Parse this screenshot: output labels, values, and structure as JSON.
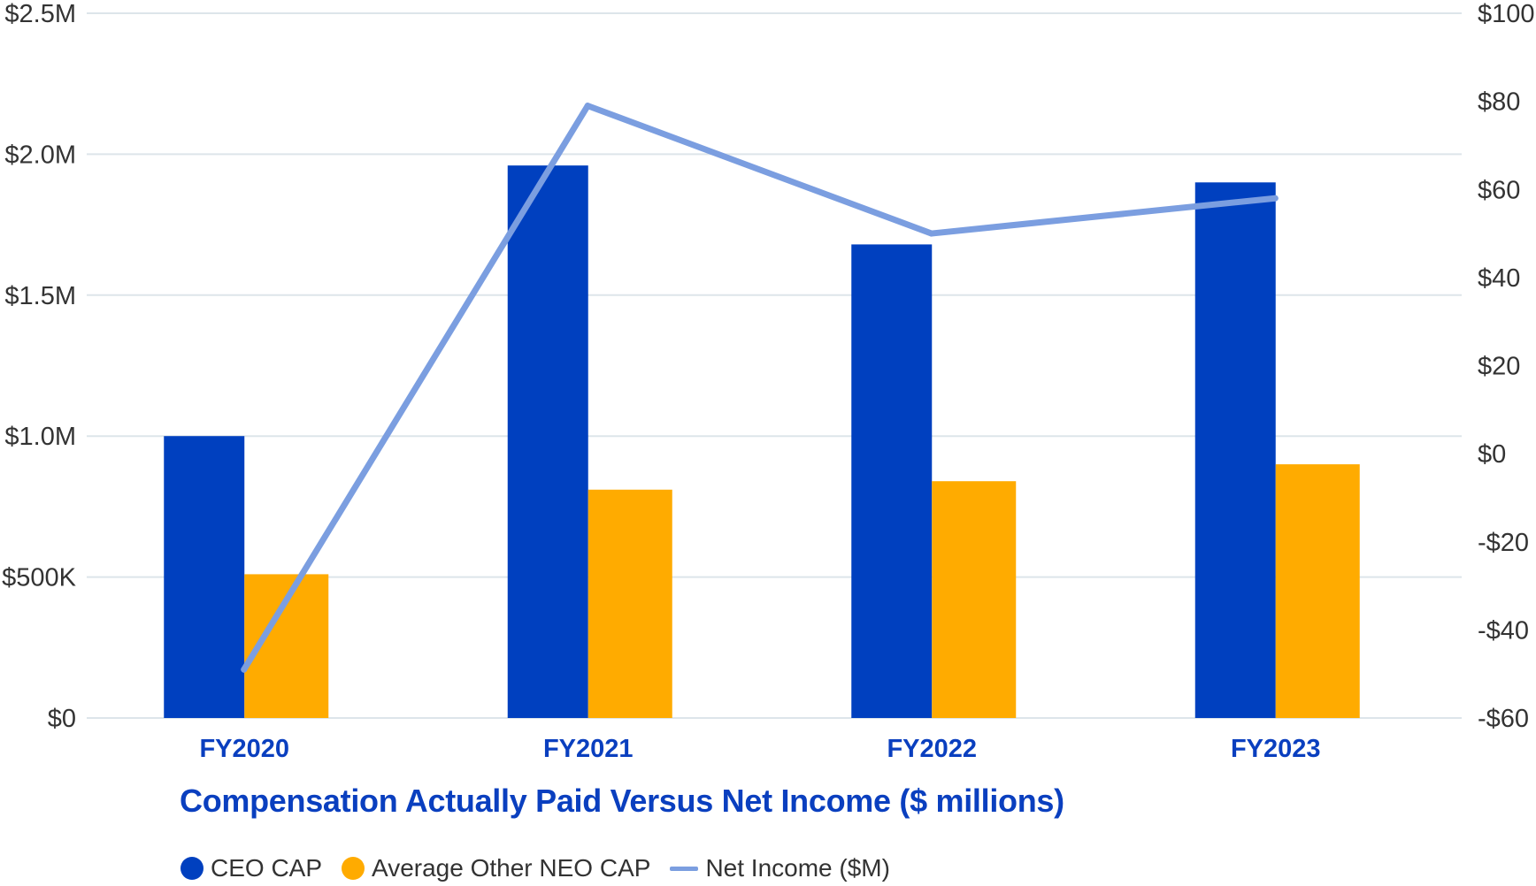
{
  "chart_data": {
    "type": "bar",
    "title": "Compensation Actually Paid Versus Net Income ($ millions)",
    "categories": [
      "FY2020",
      "FY2021",
      "FY2022",
      "FY2023"
    ],
    "series": [
      {
        "name": "CEO CAP",
        "type": "bar",
        "axis": "left",
        "color": "#0040bf",
        "values": [
          1000000,
          1960000,
          1680000,
          1900000
        ]
      },
      {
        "name": "Average Other NEO CAP",
        "type": "bar",
        "axis": "left",
        "color": "#ffab00",
        "values": [
          510000,
          810000,
          840000,
          900000
        ]
      },
      {
        "name": "Net Income ($M)",
        "type": "line",
        "axis": "right",
        "color": "#7b9ee0",
        "values": [
          -49,
          79,
          50,
          58
        ]
      }
    ],
    "y_left": {
      "ylim": [
        0,
        2500000
      ],
      "ticks": [
        0,
        500000,
        1000000,
        1500000,
        2000000,
        2500000
      ],
      "tick_labels": [
        "$0",
        "$500K",
        "$1.0M",
        "$1.5M",
        "$2.0M",
        "$2.5M"
      ]
    },
    "y_right": {
      "ylim": [
        -60,
        100
      ],
      "ticks": [
        -60,
        -40,
        -20,
        0,
        20,
        40,
        60,
        80,
        100
      ],
      "tick_labels": [
        "-$60",
        "-$40",
        "-$20",
        "$0",
        "$20",
        "$40",
        "$60",
        "$80",
        "$100"
      ]
    },
    "grid": true,
    "legend_position": "bottom-left"
  }
}
